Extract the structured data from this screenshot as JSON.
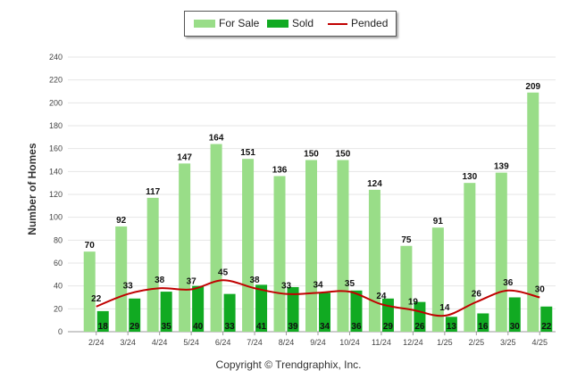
{
  "chart_data": {
    "type": "bar",
    "title": "",
    "xlabel": "",
    "ylabel": "Number of Homes",
    "ylim": [
      0,
      240
    ],
    "yticks": [
      0,
      20,
      40,
      60,
      80,
      100,
      120,
      140,
      160,
      180,
      200,
      220,
      240
    ],
    "grid": true,
    "legend_position": "top-center",
    "categories": [
      "2/24",
      "3/24",
      "4/24",
      "5/24",
      "6/24",
      "7/24",
      "8/24",
      "9/24",
      "10/24",
      "11/24",
      "12/24",
      "1/25",
      "2/25",
      "3/25",
      "4/25"
    ],
    "series": [
      {
        "name": "For Sale",
        "kind": "bar",
        "color": "#99dd88",
        "values": [
          70,
          92,
          117,
          147,
          164,
          151,
          136,
          150,
          150,
          124,
          75,
          91,
          130,
          139,
          209
        ]
      },
      {
        "name": "Sold",
        "kind": "bar",
        "color": "#11aa22",
        "values": [
          18,
          29,
          35,
          40,
          33,
          41,
          39,
          34,
          36,
          29,
          26,
          13,
          16,
          30,
          22
        ]
      },
      {
        "name": "Pended",
        "kind": "line",
        "color": "#c00000",
        "values": [
          22,
          33,
          38,
          37,
          45,
          38,
          33,
          34,
          35,
          24,
          19,
          14,
          26,
          36,
          30
        ]
      }
    ]
  },
  "legend": {
    "for_sale": "For Sale",
    "sold": "Sold",
    "pended": "Pended"
  },
  "footer": "Copyright © Trendgraphix, Inc."
}
